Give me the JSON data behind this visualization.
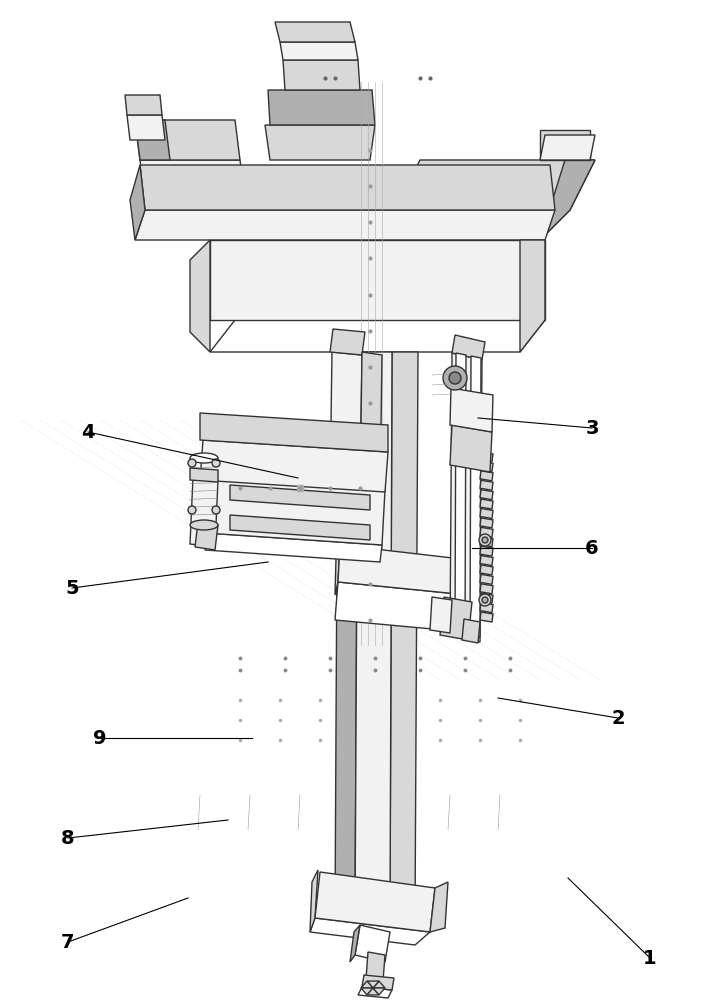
{
  "background_color": "#ffffff",
  "line_col": "#333333",
  "lw_main": 1.0,
  "lw_thin": 0.5,
  "fill_white": "#ffffff",
  "fill_light": "#f2f2f2",
  "fill_mid": "#d8d8d8",
  "fill_dark": "#b0b0b0",
  "fill_vdark": "#888888",
  "label_fontsize": 14,
  "label_color": "#000000",
  "annotations": [
    [
      "1",
      650,
      958,
      568,
      878
    ],
    [
      "2",
      618,
      718,
      498,
      698
    ],
    [
      "3",
      592,
      428,
      478,
      418
    ],
    [
      "4",
      88,
      432,
      298,
      478
    ],
    [
      "5",
      72,
      588,
      268,
      562
    ],
    [
      "6",
      592,
      548,
      472,
      548
    ],
    [
      "7",
      68,
      942,
      188,
      898
    ],
    [
      "8",
      68,
      838,
      228,
      820
    ],
    [
      "9",
      100,
      738,
      252,
      738
    ]
  ]
}
